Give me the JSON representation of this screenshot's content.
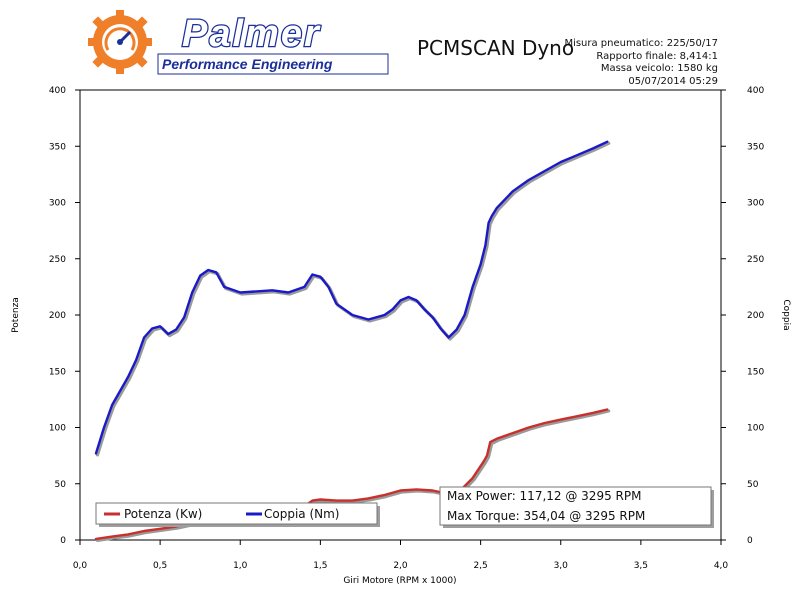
{
  "header": {
    "logo_name": "Palmer",
    "logo_subtitle": "Performance Engineering",
    "app_title": "PCMSCAN Dyno",
    "info_lines": [
      "Misura pneumatico: 225/50/17",
      "Rapporto finale: 8,414:1",
      "Massa veicolo: 1580 kg",
      "05/07/2014 05:29"
    ]
  },
  "colors": {
    "power": "#c8302c",
    "torque": "#1a1ac8",
    "brand_blue": "#1b2f9a",
    "brand_orange": "#f07f2a"
  },
  "chart_data": {
    "type": "line",
    "xlabel": "Giri Motore (RPM x 1000)",
    "ylabel_left": "Potenza",
    "ylabel_right": "Coppia",
    "xlim": [
      0,
      4
    ],
    "ylim": [
      0,
      400
    ],
    "x_ticks": [
      "0,0",
      "0,5",
      "1,0",
      "1,5",
      "2,0",
      "2,5",
      "3,0",
      "3,5",
      "4,0"
    ],
    "y_ticks": [
      "0",
      "50",
      "100",
      "150",
      "200",
      "250",
      "300",
      "350",
      "400"
    ],
    "grid": false,
    "legend_placement": "bottom-left",
    "series": [
      {
        "name": "Potenza (Kw)",
        "color": "#c8302c",
        "points": [
          [
            0.1,
            1
          ],
          [
            0.2,
            3
          ],
          [
            0.3,
            5
          ],
          [
            0.4,
            8
          ],
          [
            0.5,
            10
          ],
          [
            0.6,
            12
          ],
          [
            0.7,
            15
          ],
          [
            0.8,
            19
          ],
          [
            0.9,
            21
          ],
          [
            1.0,
            22
          ],
          [
            1.1,
            23
          ],
          [
            1.2,
            25
          ],
          [
            1.3,
            27
          ],
          [
            1.4,
            30
          ],
          [
            1.45,
            35
          ],
          [
            1.5,
            36
          ],
          [
            1.6,
            35
          ],
          [
            1.7,
            35
          ],
          [
            1.8,
            37
          ],
          [
            1.9,
            40
          ],
          [
            2.0,
            44
          ],
          [
            2.1,
            45
          ],
          [
            2.2,
            44
          ],
          [
            2.3,
            41
          ],
          [
            2.38,
            45
          ],
          [
            2.45,
            55
          ],
          [
            2.52,
            70
          ],
          [
            2.54,
            75
          ],
          [
            2.56,
            87
          ],
          [
            2.6,
            90
          ],
          [
            2.7,
            95
          ],
          [
            2.8,
            100
          ],
          [
            2.9,
            104
          ],
          [
            3.0,
            107
          ],
          [
            3.1,
            110
          ],
          [
            3.2,
            113
          ],
          [
            3.29,
            116
          ]
        ]
      },
      {
        "name": "Coppia (Nm)",
        "color": "#1a1ac8",
        "points": [
          [
            0.1,
            77
          ],
          [
            0.15,
            100
          ],
          [
            0.2,
            120
          ],
          [
            0.3,
            145
          ],
          [
            0.35,
            160
          ],
          [
            0.4,
            180
          ],
          [
            0.45,
            188
          ],
          [
            0.5,
            190
          ],
          [
            0.55,
            183
          ],
          [
            0.6,
            187
          ],
          [
            0.65,
            198
          ],
          [
            0.7,
            220
          ],
          [
            0.75,
            235
          ],
          [
            0.8,
            240
          ],
          [
            0.85,
            238
          ],
          [
            0.9,
            225
          ],
          [
            1.0,
            220
          ],
          [
            1.1,
            221
          ],
          [
            1.2,
            222
          ],
          [
            1.3,
            220
          ],
          [
            1.4,
            225
          ],
          [
            1.45,
            236
          ],
          [
            1.5,
            234
          ],
          [
            1.55,
            225
          ],
          [
            1.6,
            210
          ],
          [
            1.7,
            200
          ],
          [
            1.8,
            196
          ],
          [
            1.9,
            200
          ],
          [
            1.95,
            205
          ],
          [
            2.0,
            213
          ],
          [
            2.05,
            216
          ],
          [
            2.1,
            213
          ],
          [
            2.15,
            205
          ],
          [
            2.2,
            198
          ],
          [
            2.25,
            188
          ],
          [
            2.3,
            180
          ],
          [
            2.35,
            187
          ],
          [
            2.4,
            200
          ],
          [
            2.45,
            225
          ],
          [
            2.5,
            245
          ],
          [
            2.53,
            262
          ],
          [
            2.55,
            282
          ],
          [
            2.57,
            288
          ],
          [
            2.6,
            295
          ],
          [
            2.7,
            310
          ],
          [
            2.8,
            320
          ],
          [
            2.9,
            328
          ],
          [
            3.0,
            336
          ],
          [
            3.1,
            342
          ],
          [
            3.2,
            348
          ],
          [
            3.29,
            354
          ]
        ]
      }
    ],
    "legend": {
      "power_label": "Potenza (Kw)",
      "torque_label": "Coppia (Nm)"
    },
    "annotations": {
      "max_power": "Max Power: 117,12 @ 3295 RPM",
      "max_torque": "Max Torque: 354,04 @ 3295 RPM"
    }
  }
}
